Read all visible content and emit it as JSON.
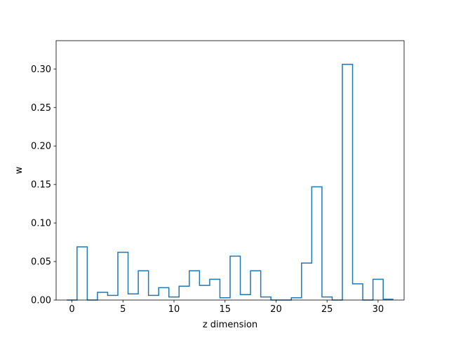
{
  "chart_data": {
    "type": "step",
    "title": "",
    "xlabel": "z dimension",
    "ylabel": "w",
    "xlim": [
      -1.55,
      32.55
    ],
    "ylim": [
      0,
      0.3367
    ],
    "xticks": [
      0,
      5,
      10,
      15,
      20,
      25,
      30
    ],
    "xtick_labels": [
      "0",
      "5",
      "10",
      "15",
      "20",
      "25",
      "30"
    ],
    "yticks": [
      0.0,
      0.05,
      0.1,
      0.15,
      0.2,
      0.25,
      0.3
    ],
    "ytick_labels": [
      "0.00",
      "0.05",
      "0.10",
      "0.15",
      "0.20",
      "0.25",
      "0.30"
    ],
    "grid": false,
    "series": [
      {
        "color": "#1f77b4",
        "x": [
          0,
          1,
          2,
          3,
          4,
          5,
          6,
          7,
          8,
          9,
          10,
          11,
          12,
          13,
          14,
          15,
          16,
          17,
          18,
          19,
          20,
          21,
          22,
          23,
          24,
          25,
          26,
          27,
          28,
          29,
          30,
          31
        ],
        "values": [
          0.0,
          0.069,
          0.0,
          0.01,
          0.006,
          0.062,
          0.008,
          0.038,
          0.006,
          0.016,
          0.004,
          0.018,
          0.038,
          0.019,
          0.027,
          0.003,
          0.057,
          0.007,
          0.038,
          0.004,
          0.0,
          0.0,
          0.003,
          0.048,
          0.147,
          0.004,
          0.0,
          0.306,
          0.021,
          0.0,
          0.027,
          0.001
        ]
      }
    ]
  }
}
